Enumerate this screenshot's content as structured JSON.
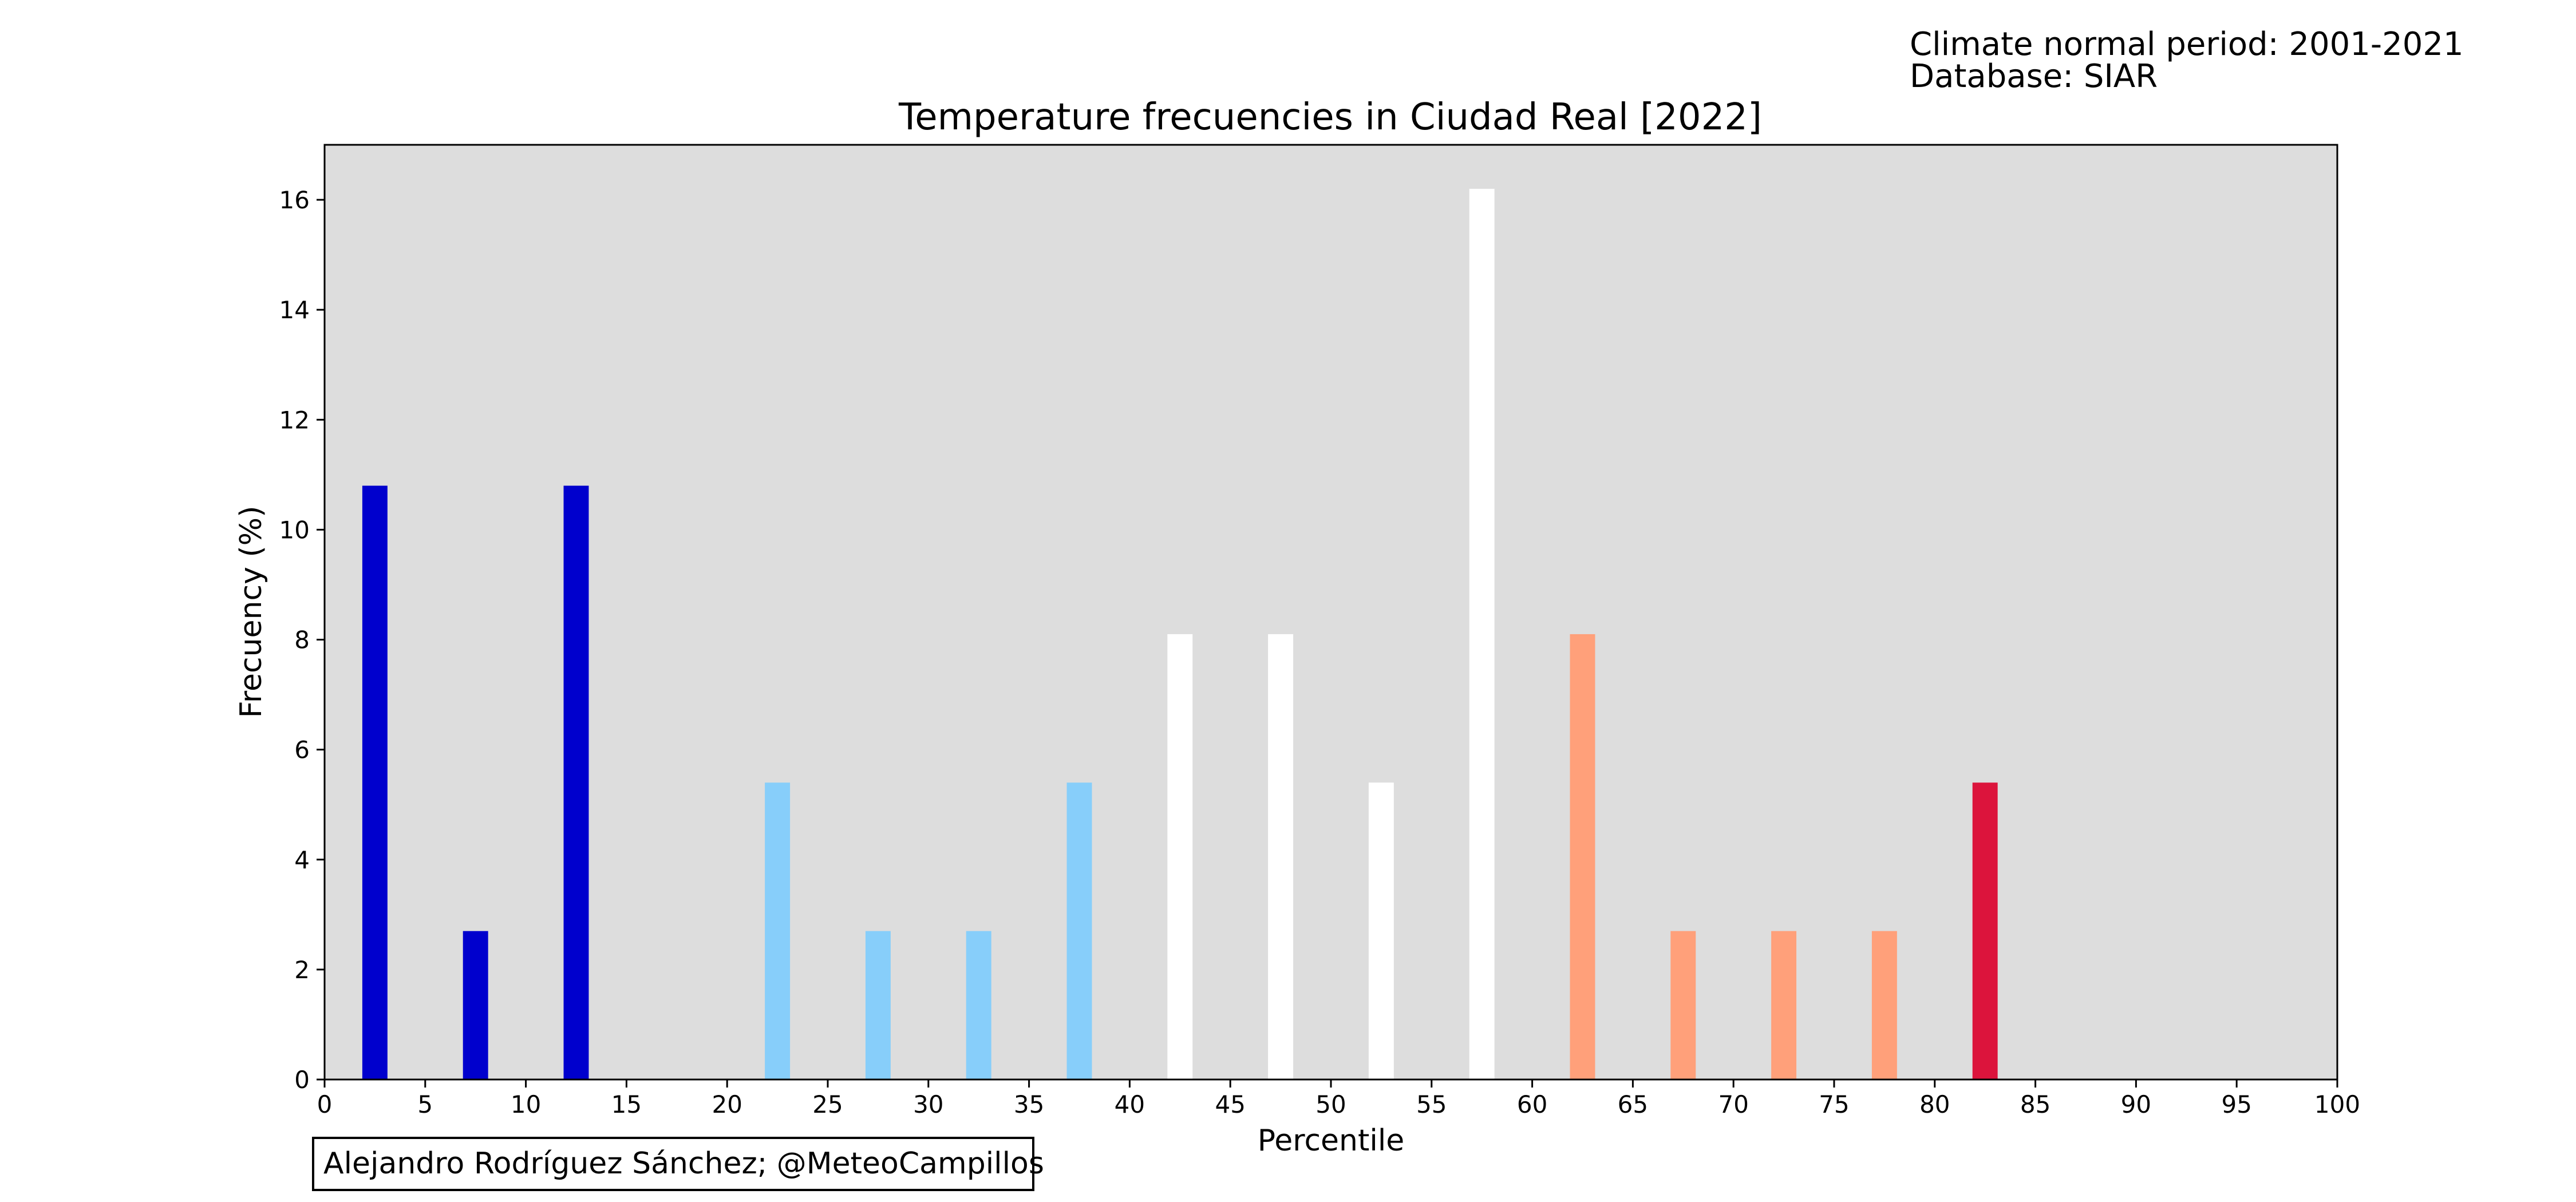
{
  "header": {
    "normal_period": "Climate normal period: 2001-2021",
    "database": "Database: SIAR"
  },
  "credit": "Alejandro Rodríguez Sánchez; @MeteoCampillos",
  "chart_data": {
    "type": "bar",
    "title": "Temperature frecuencies in Ciudad Real [2022]",
    "xlabel": "Percentile",
    "ylabel": "Frecuency (%)",
    "xlim": [
      0,
      100
    ],
    "ylim": [
      0,
      17
    ],
    "x_ticks": [
      0,
      5,
      10,
      15,
      20,
      25,
      30,
      35,
      40,
      45,
      50,
      55,
      60,
      65,
      70,
      75,
      80,
      85,
      90,
      95,
      100
    ],
    "y_ticks": [
      0,
      2,
      4,
      6,
      8,
      10,
      12,
      14,
      16
    ],
    "bar_width": 1.25,
    "grid": false,
    "background": "#dddddd",
    "bars": [
      {
        "x": 2.5,
        "value": 10.8,
        "color": "#0000cd"
      },
      {
        "x": 7.5,
        "value": 2.7,
        "color": "#0000cd"
      },
      {
        "x": 12.5,
        "value": 10.8,
        "color": "#0000cd"
      },
      {
        "x": 17.5,
        "value": 0,
        "color": "#87cefa"
      },
      {
        "x": 22.5,
        "value": 5.4,
        "color": "#87cefa"
      },
      {
        "x": 27.5,
        "value": 2.7,
        "color": "#87cefa"
      },
      {
        "x": 32.5,
        "value": 2.7,
        "color": "#87cefa"
      },
      {
        "x": 37.5,
        "value": 5.4,
        "color": "#87cefa"
      },
      {
        "x": 42.5,
        "value": 8.1,
        "color": "#ffffff"
      },
      {
        "x": 47.5,
        "value": 8.1,
        "color": "#ffffff"
      },
      {
        "x": 52.5,
        "value": 5.4,
        "color": "#ffffff"
      },
      {
        "x": 57.5,
        "value": 16.2,
        "color": "#ffffff"
      },
      {
        "x": 62.5,
        "value": 8.1,
        "color": "#ffa07a"
      },
      {
        "x": 67.5,
        "value": 2.7,
        "color": "#ffa07a"
      },
      {
        "x": 72.5,
        "value": 2.7,
        "color": "#ffa07a"
      },
      {
        "x": 77.5,
        "value": 2.7,
        "color": "#ffa07a"
      },
      {
        "x": 82.5,
        "value": 5.4,
        "color": "#dc143c"
      },
      {
        "x": 87.5,
        "value": 0,
        "color": "#dc143c"
      },
      {
        "x": 92.5,
        "value": 0,
        "color": "#dc143c"
      },
      {
        "x": 97.5,
        "value": 0,
        "color": "#dc143c"
      }
    ]
  }
}
